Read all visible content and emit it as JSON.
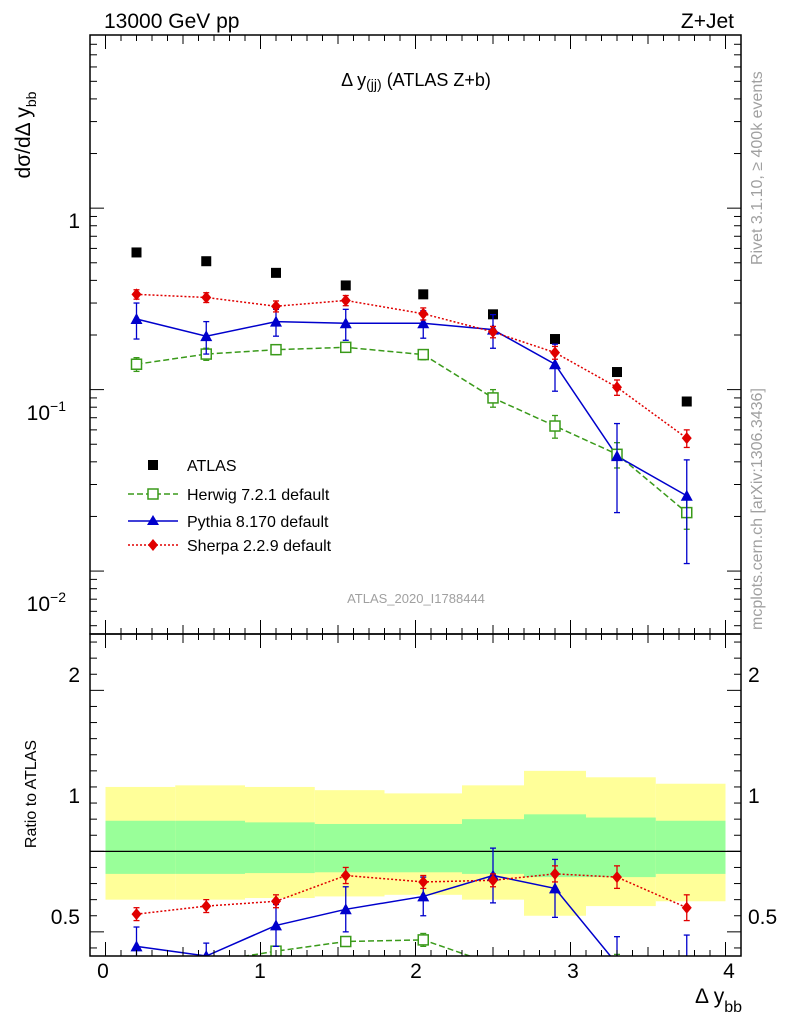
{
  "header": {
    "left": "13000 GeV pp",
    "right": "Z+Jet",
    "rivet": "Rivet 3.1.10, ≥ 400k events",
    "mcplots": "mcplots.cern.ch [arXiv:1306.3436]"
  },
  "plot_title_main": "Δ y",
  "plot_title_sub": "(jj)",
  "plot_title_rest": " (ATLAS Z+b)",
  "analysis_id": "ATLAS_2020_I1788444",
  "axes": {
    "ylabel_main": "dσ/dΔ y",
    "ylabel_sub": "bb",
    "ylabel_ratio": "Ratio to ATLAS",
    "xlabel_main": "Δ y",
    "xlabel_sub": "bb"
  },
  "ticks": {
    "main_y": [
      {
        "label": "1",
        "sup": ""
      },
      {
        "label": "10",
        "sup": "−1"
      },
      {
        "label": "10",
        "sup": "−2"
      }
    ],
    "ratio_y": [
      "2",
      "1",
      "0.5"
    ],
    "x": [
      "0",
      "1",
      "2",
      "3",
      "4"
    ]
  },
  "legend": [
    "ATLAS",
    "Herwig 7.2.1 default",
    "Pythia 8.170 default",
    "Sherpa 2.2.9 default"
  ],
  "colors": {
    "atlas": "#000000",
    "herwig": "#3a9a1a",
    "pythia": "#0000cc",
    "sherpa": "#e00000",
    "band_inner": "#99ff99",
    "band_outer": "#ffff99"
  },
  "chart_data": {
    "type": "scatter",
    "x_scale": "linear",
    "y_scale": "log",
    "xlim": [
      -0.1,
      4.1
    ],
    "ylim": [
      0.0045,
      9.0
    ],
    "ratio_ylim": [
      0.35,
      2.35
    ],
    "bin_edges": [
      0.0,
      0.45,
      0.9,
      1.35,
      1.8,
      2.3,
      2.7,
      3.1,
      3.55,
      4.0
    ],
    "x": [
      0.2,
      0.65,
      1.1,
      1.55,
      2.05,
      2.5,
      2.9,
      3.3,
      3.75
    ],
    "ratio_band_inner": [
      [
        0.86,
        1.19
      ],
      [
        0.86,
        1.19
      ],
      [
        0.865,
        1.18
      ],
      [
        0.87,
        1.17
      ],
      [
        0.87,
        1.17
      ],
      [
        0.86,
        1.2
      ],
      [
        0.84,
        1.23
      ],
      [
        0.84,
        1.21
      ],
      [
        0.86,
        1.19
      ]
    ],
    "ratio_band_outer": [
      [
        0.7,
        1.4
      ],
      [
        0.7,
        1.41
      ],
      [
        0.71,
        1.4
      ],
      [
        0.72,
        1.38
      ],
      [
        0.73,
        1.36
      ],
      [
        0.7,
        1.41
      ],
      [
        0.6,
        1.5
      ],
      [
        0.66,
        1.46
      ],
      [
        0.69,
        1.42
      ]
    ],
    "series": [
      {
        "name": "ATLAS",
        "values": [
          0.57,
          0.51,
          0.44,
          0.375,
          0.335,
          0.26,
          0.19,
          0.125,
          0.086
        ],
        "errors": [
          0.0,
          0.0,
          0.0,
          0.0,
          0.0,
          0.0,
          0.0,
          0.0,
          0.0
        ]
      },
      {
        "name": "Herwig 7.2.1 default",
        "values": [
          0.138,
          0.157,
          0.166,
          0.171,
          0.156,
          0.09,
          0.063,
          0.044,
          0.021
        ],
        "errors": [
          0.012,
          0.012,
          0.01,
          0.01,
          0.01,
          0.01,
          0.009,
          0.007,
          0.004
        ],
        "ratio": [
          0.24,
          0.31,
          0.38,
          0.44,
          0.45,
          0.3,
          0.29,
          0.31,
          0.23
        ],
        "ratio_errors": [
          0.02,
          0.03,
          0.03,
          0.03,
          0.04,
          0.04,
          0.04,
          0.05,
          0.05
        ]
      },
      {
        "name": "Pythia 8.170 default",
        "values": [
          0.245,
          0.197,
          0.237,
          0.232,
          0.232,
          0.214,
          0.138,
          0.043,
          0.026
        ],
        "errors": [
          0.055,
          0.04,
          0.04,
          0.045,
          0.04,
          0.045,
          0.04,
          0.022,
          0.015
        ],
        "ratio": [
          0.41,
          0.35,
          0.54,
          0.64,
          0.72,
          0.85,
          0.77,
          0.3,
          0.31
        ],
        "ratio_errors": [
          0.12,
          0.08,
          0.13,
          0.14,
          0.12,
          0.17,
          0.18,
          0.17,
          0.17
        ]
      },
      {
        "name": "Sherpa 2.2.9 default",
        "values": [
          0.335,
          0.322,
          0.288,
          0.31,
          0.262,
          0.208,
          0.16,
          0.103,
          0.054
        ],
        "errors": [
          0.02,
          0.02,
          0.02,
          0.02,
          0.02,
          0.015,
          0.013,
          0.01,
          0.006
        ],
        "ratio": [
          0.61,
          0.66,
          0.69,
          0.85,
          0.81,
          0.82,
          0.86,
          0.84,
          0.65
        ],
        "ratio_errors": [
          0.04,
          0.04,
          0.04,
          0.05,
          0.04,
          0.04,
          0.05,
          0.07,
          0.08
        ]
      }
    ]
  }
}
